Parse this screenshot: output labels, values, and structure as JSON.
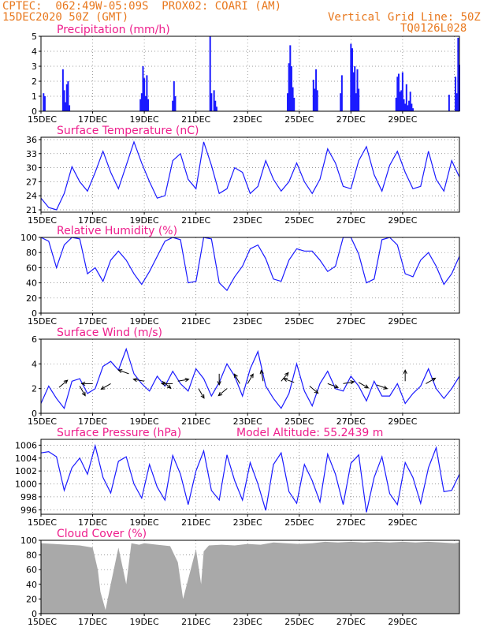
{
  "header": {
    "line1": "CPTEC:  062:49W-05:09S  PROX02: COARI (AM)",
    "line2": "15DEC2020 50Z (GMT)",
    "grid_note": "Vertical Grid Line: 50Z",
    "code": "TQ0126L028"
  },
  "x_ticks": [
    "15DEC",
    "17DEC",
    "19DEC",
    "21DEC",
    "23DEC",
    "25DEC",
    "27DEC",
    "29DEC"
  ],
  "chart_data": [
    {
      "type": "bar",
      "title": "Precipitation (mm/h)",
      "ylim": [
        0,
        5
      ],
      "yticks": [
        0,
        1,
        2,
        3,
        4,
        5
      ],
      "x": [
        0.1,
        0.15,
        0.85,
        0.9,
        0.95,
        1.0,
        1.05,
        1.1,
        3.85,
        3.9,
        3.95,
        4.0,
        4.05,
        4.1,
        4.15,
        5.1,
        5.15,
        5.2,
        6.55,
        6.6,
        6.7,
        6.75,
        6.8,
        9.55,
        9.6,
        9.65,
        9.7,
        9.75,
        9.8,
        10.55,
        10.6,
        10.65,
        10.7,
        11.6,
        11.65,
        12.0,
        12.05,
        12.1,
        12.15,
        12.2,
        12.25,
        12.3,
        13.75,
        13.8,
        13.85,
        13.9,
        13.95,
        14.0,
        14.05,
        14.1,
        14.15,
        14.2,
        14.25,
        14.3,
        14.35,
        14.4,
        15.8,
        16.05,
        16.1,
        16.15,
        16.2
      ],
      "values": [
        1.2,
        1.0,
        2.8,
        1.4,
        0.6,
        1.8,
        2.0,
        0.4,
        0.8,
        1.2,
        3.0,
        2.2,
        1.0,
        2.4,
        0.8,
        0.7,
        2.0,
        1.0,
        5.0,
        1.2,
        1.4,
        0.7,
        0.3,
        1.2,
        3.2,
        4.4,
        3.0,
        1.6,
        0.9,
        2.1,
        1.5,
        2.8,
        1.4,
        1.2,
        2.4,
        4.5,
        4.2,
        2.6,
        3.0,
        1.2,
        2.8,
        1.5,
        0.9,
        2.3,
        2.5,
        1.3,
        1.4,
        2.6,
        0.8,
        0.5,
        1.8,
        0.4,
        0.7,
        1.3,
        0.5,
        0.2,
        1.1,
        2.3,
        1.2,
        4.9,
        3.1
      ],
      "color": "#1a1aff"
    },
    {
      "type": "line",
      "title": "Surface Temperature (nC)",
      "ylim": [
        20.5,
        36.5
      ],
      "yticks": [
        21,
        24,
        27,
        30,
        33,
        36
      ],
      "x": [
        0.0,
        0.3,
        0.6,
        0.9,
        1.2,
        1.5,
        1.8,
        2.1,
        2.4,
        2.7,
        3.0,
        3.3,
        3.6,
        3.9,
        4.2,
        4.5,
        4.8,
        5.1,
        5.4,
        5.7,
        6.0,
        6.3,
        6.6,
        6.9,
        7.2,
        7.5,
        7.8,
        8.1,
        8.4,
        8.7,
        9.0,
        9.3,
        9.6,
        9.9,
        10.2,
        10.5,
        10.8,
        11.1,
        11.4,
        11.7,
        12.0,
        12.3,
        12.6,
        12.9,
        13.2,
        13.5,
        13.8,
        14.1,
        14.4,
        14.7,
        15.0,
        15.3,
        15.6,
        15.9,
        16.2
      ],
      "values": [
        23.5,
        21.5,
        21.0,
        24.5,
        30.2,
        27.0,
        25.0,
        29.0,
        33.5,
        29.0,
        25.5,
        30.5,
        35.5,
        31.0,
        27.0,
        23.5,
        24.0,
        31.5,
        33.0,
        27.5,
        25.5,
        35.5,
        30.5,
        24.5,
        25.5,
        30.0,
        29.0,
        24.5,
        26.0,
        31.5,
        27.5,
        25.0,
        27.0,
        31.0,
        27.0,
        24.5,
        27.5,
        34.0,
        31.0,
        26.0,
        25.5,
        31.5,
        34.5,
        28.5,
        25.0,
        30.5,
        33.5,
        29.0,
        25.5,
        26.0,
        33.5,
        27.5,
        25.0,
        31.5,
        28.0
      ],
      "color": "#1a1aff"
    },
    {
      "type": "line",
      "title": "Relative Humidity (%)",
      "ylim": [
        0,
        100
      ],
      "yticks": [
        0,
        20,
        40,
        60,
        80,
        100
      ],
      "x": [
        0.0,
        0.3,
        0.6,
        0.9,
        1.2,
        1.5,
        1.8,
        2.1,
        2.4,
        2.7,
        3.0,
        3.3,
        3.6,
        3.9,
        4.2,
        4.5,
        4.8,
        5.1,
        5.4,
        5.7,
        6.0,
        6.3,
        6.6,
        6.9,
        7.2,
        7.5,
        7.8,
        8.1,
        8.4,
        8.7,
        9.0,
        9.3,
        9.6,
        9.9,
        10.2,
        10.5,
        10.8,
        11.1,
        11.4,
        11.7,
        12.0,
        12.3,
        12.6,
        12.9,
        13.2,
        13.5,
        13.8,
        14.1,
        14.4,
        14.7,
        15.0,
        15.3,
        15.6,
        15.9,
        16.2
      ],
      "values": [
        100,
        95,
        60,
        90,
        100,
        98,
        52,
        60,
        42,
        70,
        82,
        70,
        52,
        38,
        55,
        75,
        95,
        100,
        97,
        40,
        42,
        100,
        98,
        40,
        30,
        48,
        62,
        85,
        90,
        72,
        45,
        42,
        70,
        85,
        82,
        82,
        70,
        55,
        62,
        100,
        100,
        78,
        40,
        45,
        97,
        100,
        90,
        52,
        48,
        70,
        80,
        62,
        38,
        52,
        75
      ],
      "color": "#1a1aff"
    },
    {
      "type": "line",
      "title": "Surface Wind (m/s)",
      "ylim": [
        0,
        6
      ],
      "yticks": [
        0,
        2,
        4,
        6
      ],
      "x": [
        0.0,
        0.3,
        0.6,
        0.9,
        1.2,
        1.5,
        1.8,
        2.1,
        2.4,
        2.7,
        3.0,
        3.3,
        3.6,
        3.9,
        4.2,
        4.5,
        4.8,
        5.1,
        5.4,
        5.7,
        6.0,
        6.3,
        6.6,
        6.9,
        7.2,
        7.5,
        7.8,
        8.1,
        8.4,
        8.7,
        9.0,
        9.3,
        9.6,
        9.9,
        10.2,
        10.5,
        10.8,
        11.1,
        11.4,
        11.7,
        12.0,
        12.3,
        12.6,
        12.9,
        13.2,
        13.5,
        13.8,
        14.1,
        14.4,
        14.7,
        15.0,
        15.3,
        15.6,
        15.9,
        16.2
      ],
      "values": [
        0.8,
        2.2,
        1.2,
        0.4,
        2.6,
        2.8,
        1.6,
        2.0,
        3.8,
        4.2,
        3.5,
        5.2,
        3.2,
        2.4,
        1.8,
        3.0,
        2.2,
        3.4,
        2.4,
        1.8,
        3.6,
        2.8,
        1.4,
        2.5,
        4.0,
        3.0,
        1.4,
        3.6,
        5.0,
        2.2,
        1.2,
        0.4,
        1.6,
        4.0,
        1.8,
        0.6,
        2.4,
        3.4,
        2.0,
        1.8,
        3.0,
        2.2,
        1.0,
        2.6,
        1.4,
        1.4,
        2.4,
        0.8,
        1.6,
        2.2,
        3.6,
        2.0,
        1.2,
        2.0,
        3.0
      ],
      "color": "#1a1aff",
      "arrows": [
        {
          "x": 0.7,
          "y": 2.1,
          "dir": 40
        },
        {
          "x": 1.5,
          "y": 2.2,
          "dir": -60
        },
        {
          "x": 2.0,
          "y": 2.4,
          "dir": 180
        },
        {
          "x": 2.7,
          "y": 2.4,
          "dir": -150
        },
        {
          "x": 3.4,
          "y": 3.2,
          "dir": 160
        },
        {
          "x": 4.0,
          "y": 2.6,
          "dir": 170
        },
        {
          "x": 4.7,
          "y": 2.6,
          "dir": -40
        },
        {
          "x": 5.1,
          "y": 2.4,
          "dir": 180
        },
        {
          "x": 5.3,
          "y": 2.6,
          "dir": 10
        },
        {
          "x": 6.1,
          "y": 2.0,
          "dir": -60
        },
        {
          "x": 6.9,
          "y": 3.2,
          "dir": -90
        },
        {
          "x": 7.2,
          "y": 2.0,
          "dir": -140
        },
        {
          "x": 7.7,
          "y": 2.4,
          "dir": 120
        },
        {
          "x": 8.0,
          "y": 2.4,
          "dir": 60
        },
        {
          "x": 8.6,
          "y": 2.6,
          "dir": 100
        },
        {
          "x": 9.3,
          "y": 2.6,
          "dir": 50
        },
        {
          "x": 9.8,
          "y": 2.5,
          "dir": 160
        },
        {
          "x": 10.4,
          "y": 2.2,
          "dir": -40
        },
        {
          "x": 11.1,
          "y": 2.4,
          "dir": -20
        },
        {
          "x": 11.7,
          "y": 2.4,
          "dir": 10
        },
        {
          "x": 12.3,
          "y": 2.5,
          "dir": -30
        },
        {
          "x": 13.0,
          "y": 2.3,
          "dir": -20
        },
        {
          "x": 14.1,
          "y": 2.6,
          "dir": 90
        },
        {
          "x": 14.9,
          "y": 2.4,
          "dir": 30
        }
      ]
    },
    {
      "type": "line",
      "title": "Surface Pressure (hPa)",
      "subtitle": "Model Altitude: 55.2439  m",
      "ylim": [
        995.3,
        1006.9
      ],
      "yticks": [
        996,
        998,
        1000,
        1002,
        1004,
        1006
      ],
      "x": [
        0.0,
        0.3,
        0.6,
        0.9,
        1.2,
        1.5,
        1.8,
        2.1,
        2.4,
        2.7,
        3.0,
        3.3,
        3.6,
        3.9,
        4.2,
        4.5,
        4.8,
        5.1,
        5.4,
        5.7,
        6.0,
        6.3,
        6.6,
        6.9,
        7.2,
        7.5,
        7.8,
        8.1,
        8.4,
        8.7,
        9.0,
        9.3,
        9.6,
        9.9,
        10.2,
        10.5,
        10.8,
        11.1,
        11.4,
        11.7,
        12.0,
        12.3,
        12.6,
        12.9,
        13.2,
        13.5,
        13.8,
        14.1,
        14.4,
        14.7,
        15.0,
        15.3,
        15.6,
        15.9,
        16.2
      ],
      "values": [
        1004.8,
        1005.0,
        1004.2,
        999.0,
        1002.5,
        1004.0,
        1001.5,
        1005.9,
        1001.0,
        998.6,
        1003.5,
        1004.2,
        1000.0,
        997.8,
        1003.0,
        999.5,
        997.5,
        1004.4,
        1001.5,
        996.8,
        1002.0,
        1005.1,
        999.0,
        997.5,
        1004.5,
        1000.5,
        997.5,
        1003.3,
        1000.0,
        995.9,
        1003.0,
        1004.8,
        998.8,
        997.0,
        1003.0,
        1000.5,
        997.2,
        1004.6,
        1001.5,
        996.8,
        1003.2,
        1004.5,
        995.6,
        1001.0,
        1004.2,
        998.5,
        996.8,
        1003.3,
        1001.0,
        997.0,
        1002.5,
        1005.6,
        998.8,
        999.0,
        1001.5
      ],
      "color": "#1a1aff"
    },
    {
      "type": "area",
      "title": "Cloud Cover (%)",
      "ylim": [
        0,
        100
      ],
      "yticks": [
        0,
        20,
        40,
        60,
        80,
        100
      ],
      "x": [
        0.0,
        0.5,
        1.0,
        1.5,
        2.0,
        2.2,
        2.3,
        2.5,
        2.7,
        3.0,
        3.3,
        3.5,
        3.8,
        4.0,
        4.5,
        5.0,
        5.3,
        5.5,
        6.0,
        6.2,
        6.3,
        6.5,
        7.0,
        7.5,
        8.0,
        8.5,
        9.0,
        9.5,
        10.0,
        10.5,
        11.0,
        11.5,
        12.0,
        12.5,
        13.0,
        13.5,
        14.0,
        14.5,
        15.0,
        15.5,
        16.0,
        16.2
      ],
      "values": [
        96,
        95,
        94,
        93,
        90,
        60,
        30,
        5,
        40,
        90,
        40,
        96,
        94,
        96,
        94,
        92,
        70,
        20,
        88,
        40,
        85,
        93,
        94,
        93,
        95,
        94,
        97,
        96,
        95,
        96,
        98,
        97,
        98,
        97,
        98,
        97,
        98,
        97,
        98,
        97,
        96,
        97
      ],
      "color": "#a9a9a9"
    }
  ]
}
